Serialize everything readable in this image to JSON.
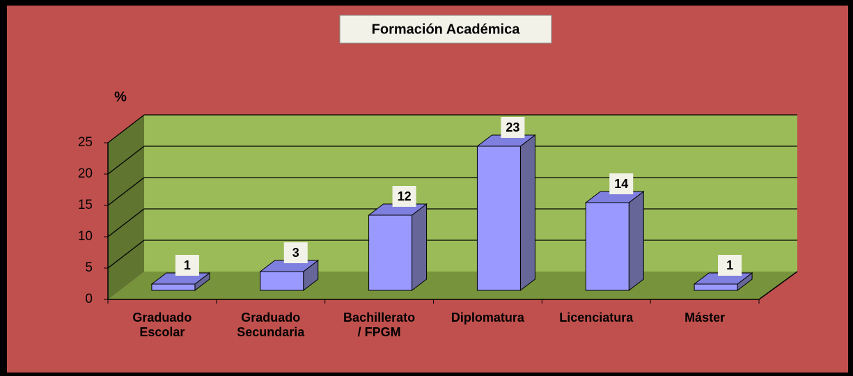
{
  "chart_data": {
    "type": "bar3d",
    "title": "Formación Académica",
    "y_label": "%",
    "categories": [
      "Graduado\nEscolar",
      "Graduado\nSecundaria",
      "Bachillerato\n/ FPGM",
      "Diplomatura",
      "Licenciatura",
      "Máster"
    ],
    "values": [
      1,
      3,
      12,
      23,
      14,
      1
    ],
    "color": "#9999ff",
    "ylim": [
      0,
      25
    ],
    "yticks": [
      0,
      5,
      10,
      15,
      20,
      25
    ],
    "grid": true
  }
}
